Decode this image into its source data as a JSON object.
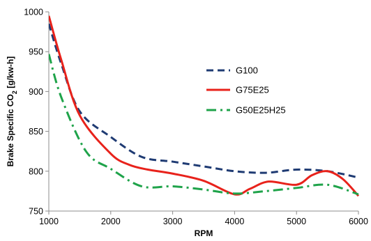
{
  "chart_data": {
    "type": "line",
    "title": "",
    "xlabel": "RPM",
    "ylabel_main": "Brake Specific CO",
    "ylabel_sub": "2",
    "ylabel_tail": " [g/kw-h]",
    "xlim": [
      1000,
      6000
    ],
    "ylim": [
      750,
      1000
    ],
    "xticks": [
      1000,
      2000,
      3000,
      4000,
      5000,
      6000
    ],
    "yticks": [
      750,
      800,
      850,
      900,
      950,
      1000
    ],
    "grid": false,
    "legend_position": "center-right",
    "series": [
      {
        "name": "G100",
        "color": "#1F3B73",
        "dash": "dashed",
        "x": [
          1000,
          1200,
          1500,
          2000,
          2500,
          3000,
          3500,
          4000,
          4500,
          5000,
          5500,
          6000
        ],
        "y": [
          985,
          935,
          875,
          843,
          818,
          812,
          806,
          800,
          798,
          802,
          800,
          792
        ]
      },
      {
        "name": "G75E25",
        "color": "#E8221B",
        "dash": "solid",
        "x": [
          1000,
          1200,
          1500,
          2000,
          2300,
          2600,
          3000,
          3500,
          4000,
          4250,
          4550,
          5000,
          5250,
          5500,
          5750,
          6000
        ],
        "y": [
          995,
          940,
          870,
          822,
          808,
          802,
          797,
          788,
          771,
          778,
          787,
          783,
          795,
          800,
          790,
          769
        ]
      },
      {
        "name": "G50E25H25",
        "color": "#1FA34A",
        "dash": "dashdot",
        "x": [
          1000,
          1200,
          1600,
          2000,
          2500,
          3000,
          3500,
          4000,
          4500,
          5000,
          5500,
          6000
        ],
        "y": [
          947,
          893,
          825,
          803,
          781,
          781,
          777,
          772,
          775,
          779,
          783,
          771
        ]
      }
    ]
  }
}
